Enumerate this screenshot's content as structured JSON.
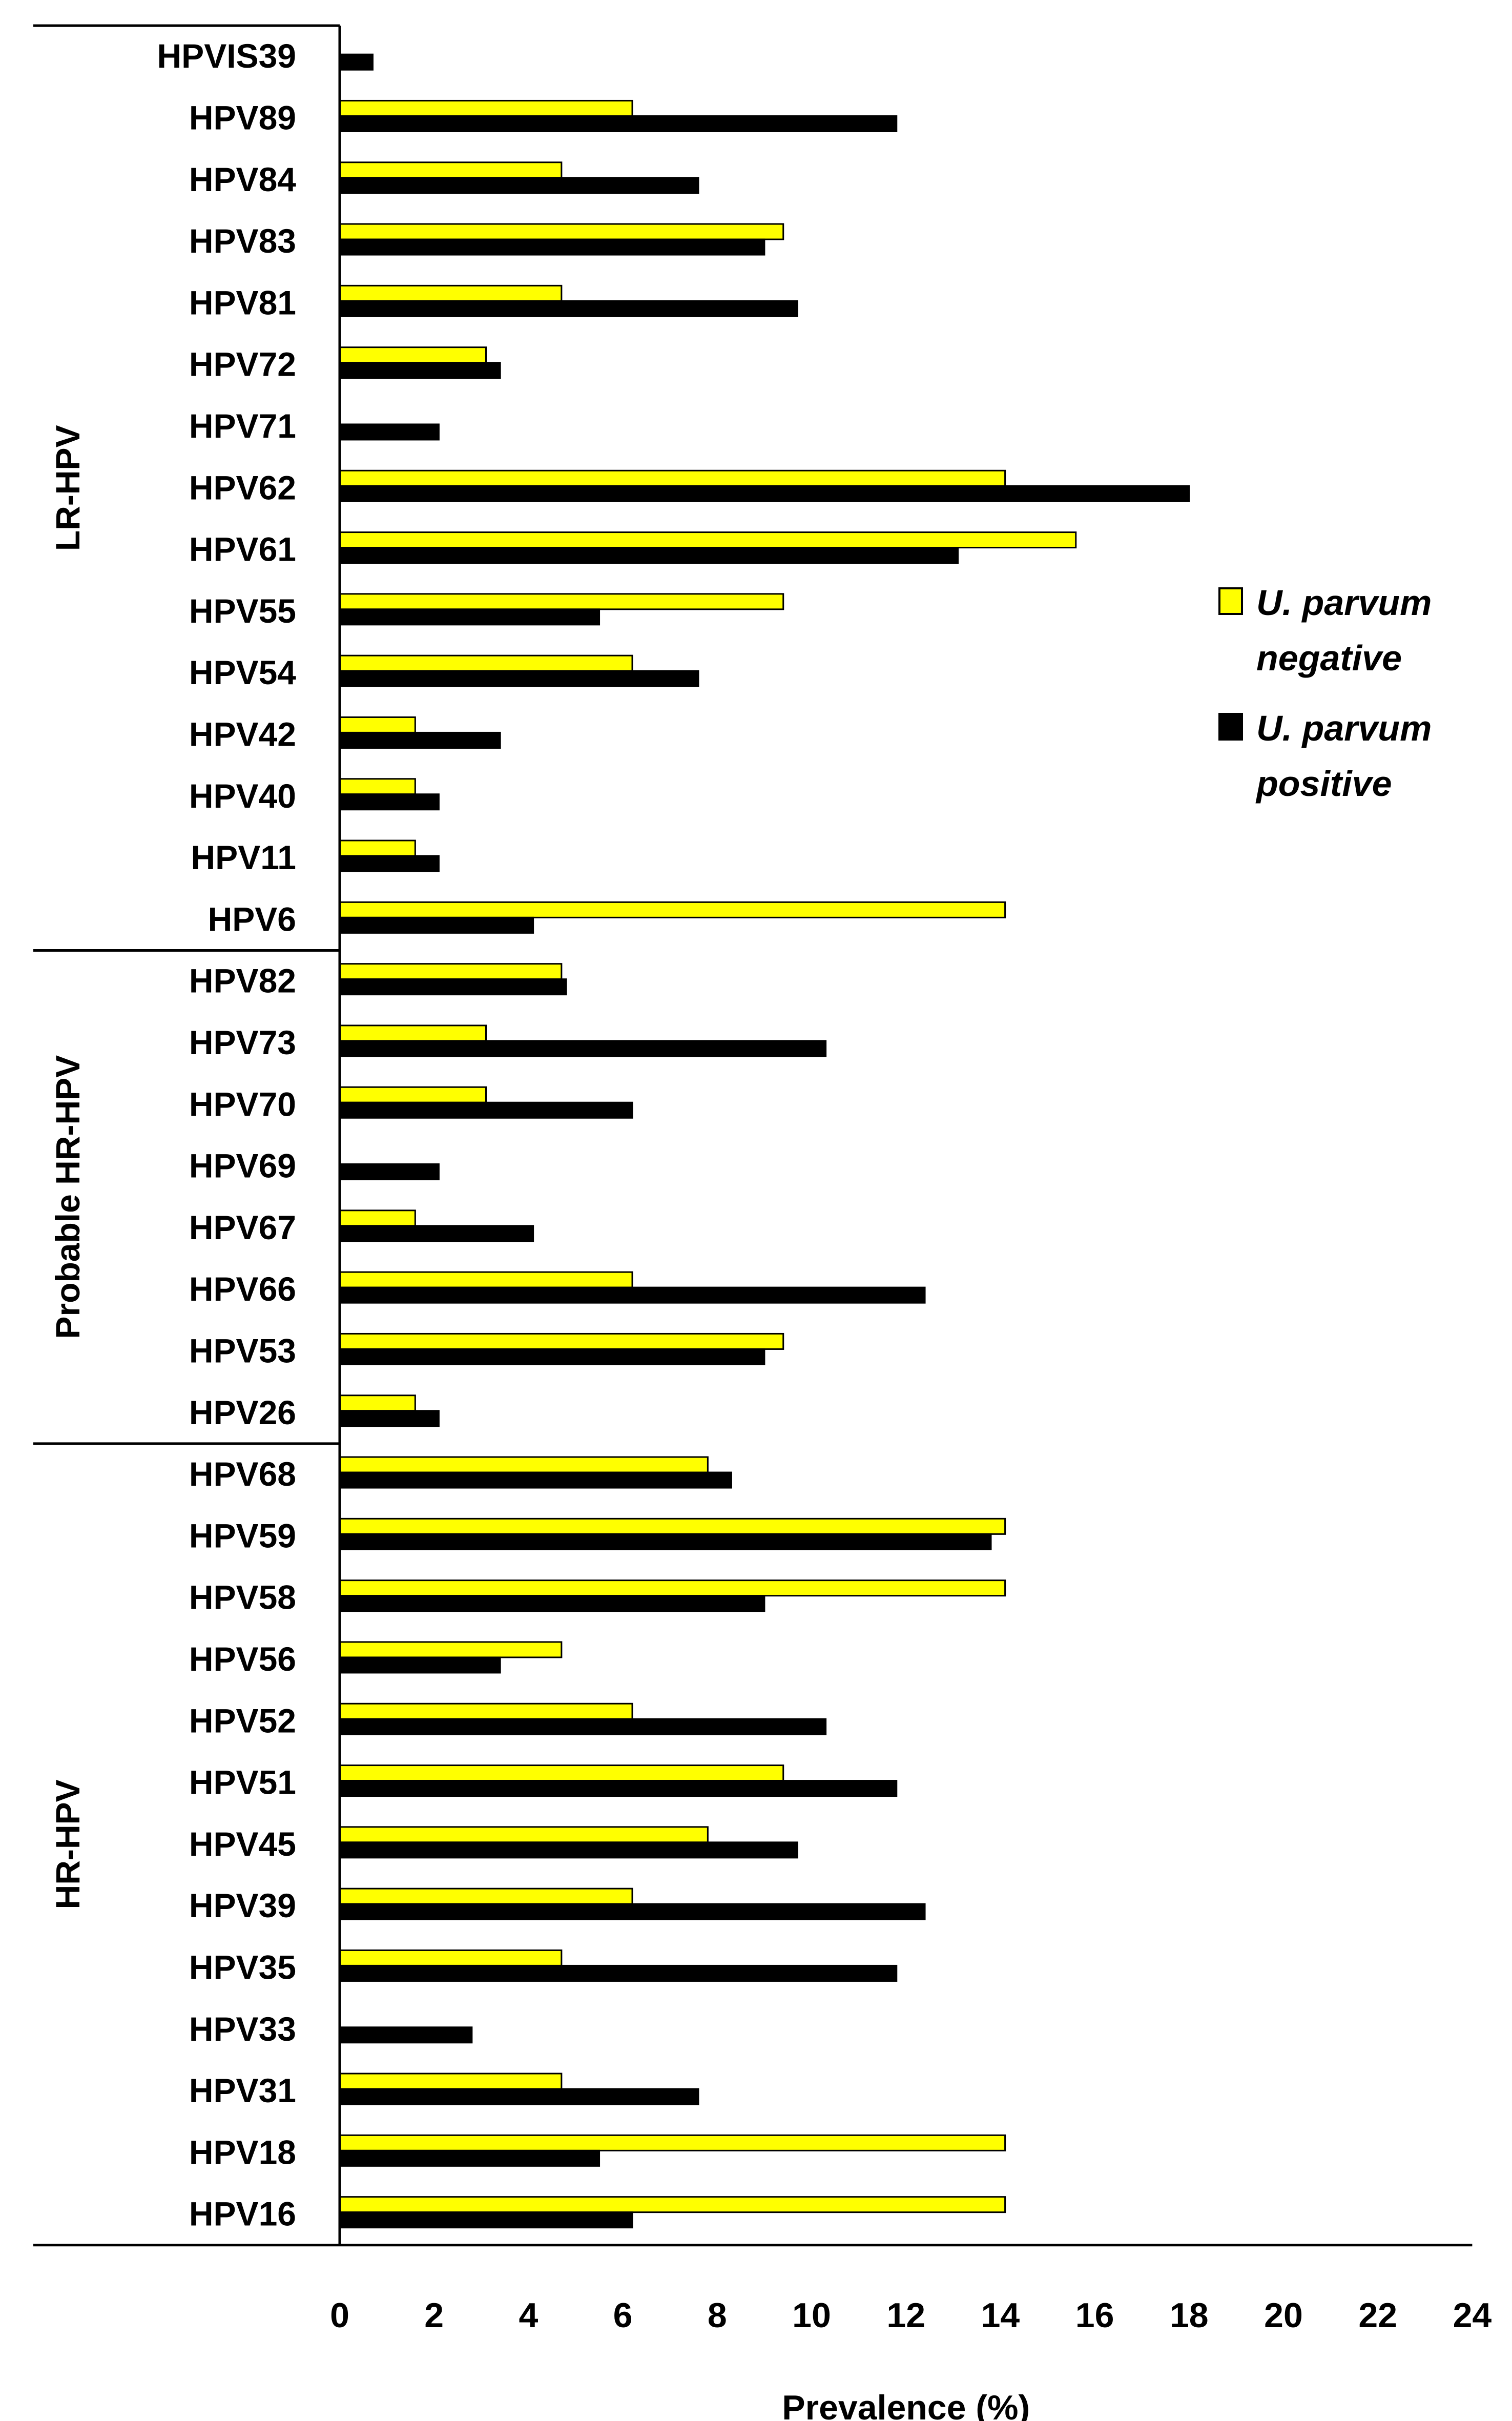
{
  "chart_data": {
    "type": "bar",
    "orientation": "horizontal",
    "xlabel": "Prevalence (%)",
    "xlim": [
      0,
      24
    ],
    "xticks": [
      0,
      2,
      4,
      6,
      8,
      10,
      12,
      14,
      16,
      18,
      20,
      22,
      24
    ],
    "grid": false,
    "legend_position": "right",
    "categories": [
      "HPVIS39",
      "HPV89",
      "HPV84",
      "HPV83",
      "HPV81",
      "HPV72",
      "HPV71",
      "HPV62",
      "HPV61",
      "HPV55",
      "HPV54",
      "HPV42",
      "HPV40",
      "HPV11",
      "HPV6",
      "HPV82",
      "HPV73",
      "HPV70",
      "HPV69",
      "HPV67",
      "HPV66",
      "HPV53",
      "HPV26",
      "HPV68",
      "HPV59",
      "HPV58",
      "HPV56",
      "HPV52",
      "HPV51",
      "HPV45",
      "HPV39",
      "HPV35",
      "HPV33",
      "HPV31",
      "HPV18",
      "HPV16"
    ],
    "groups": [
      {
        "label": "LR-HPV",
        "first": "HPVIS39",
        "last": "HPV6"
      },
      {
        "label": "Probable HR-HPV",
        "first": "HPV82",
        "last": "HPV26"
      },
      {
        "label": "HR-HPV",
        "first": "HPV68",
        "last": "HPV16"
      }
    ],
    "series": [
      {
        "name_line1": "U. parvum",
        "name_line2": "negative",
        "color": "#ffff00",
        "values": [
          0,
          6.2,
          4.7,
          9.4,
          4.7,
          3.1,
          0,
          14.1,
          15.6,
          9.4,
          6.2,
          1.6,
          1.6,
          1.6,
          14.1,
          4.7,
          3.1,
          3.1,
          0,
          1.6,
          6.2,
          9.4,
          1.6,
          7.8,
          14.1,
          14.1,
          4.7,
          6.2,
          9.4,
          7.8,
          6.2,
          4.7,
          0,
          4.7,
          14.1,
          14.1
        ]
      },
      {
        "name_line1": "U. parvum",
        "name_line2": "positive",
        "color": "#000000",
        "values": [
          0.7,
          11.8,
          7.6,
          9.0,
          9.7,
          3.4,
          2.1,
          18.0,
          13.1,
          5.5,
          7.6,
          3.4,
          2.1,
          2.1,
          4.1,
          4.8,
          10.3,
          6.2,
          2.1,
          4.1,
          12.4,
          9.0,
          2.1,
          8.3,
          13.8,
          9.0,
          3.4,
          10.3,
          11.8,
          9.7,
          12.4,
          11.8,
          2.8,
          7.6,
          5.5,
          6.2
        ]
      }
    ]
  }
}
